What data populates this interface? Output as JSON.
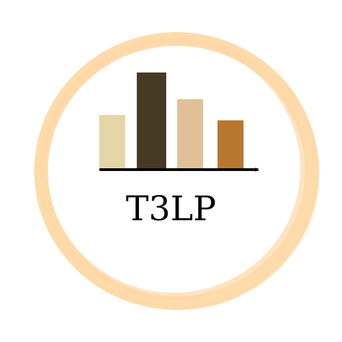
{
  "logo": {
    "wordmark": "T3LP",
    "colors": {
      "ring": "#fdd9a6",
      "bars": [
        "#e4d6a7",
        "#463a25",
        "#e0c197",
        "#b7772e"
      ],
      "axis": "#000000",
      "text": "#000000"
    },
    "bar_levels": [
      0.56,
      1.0,
      0.72,
      0.5
    ]
  }
}
